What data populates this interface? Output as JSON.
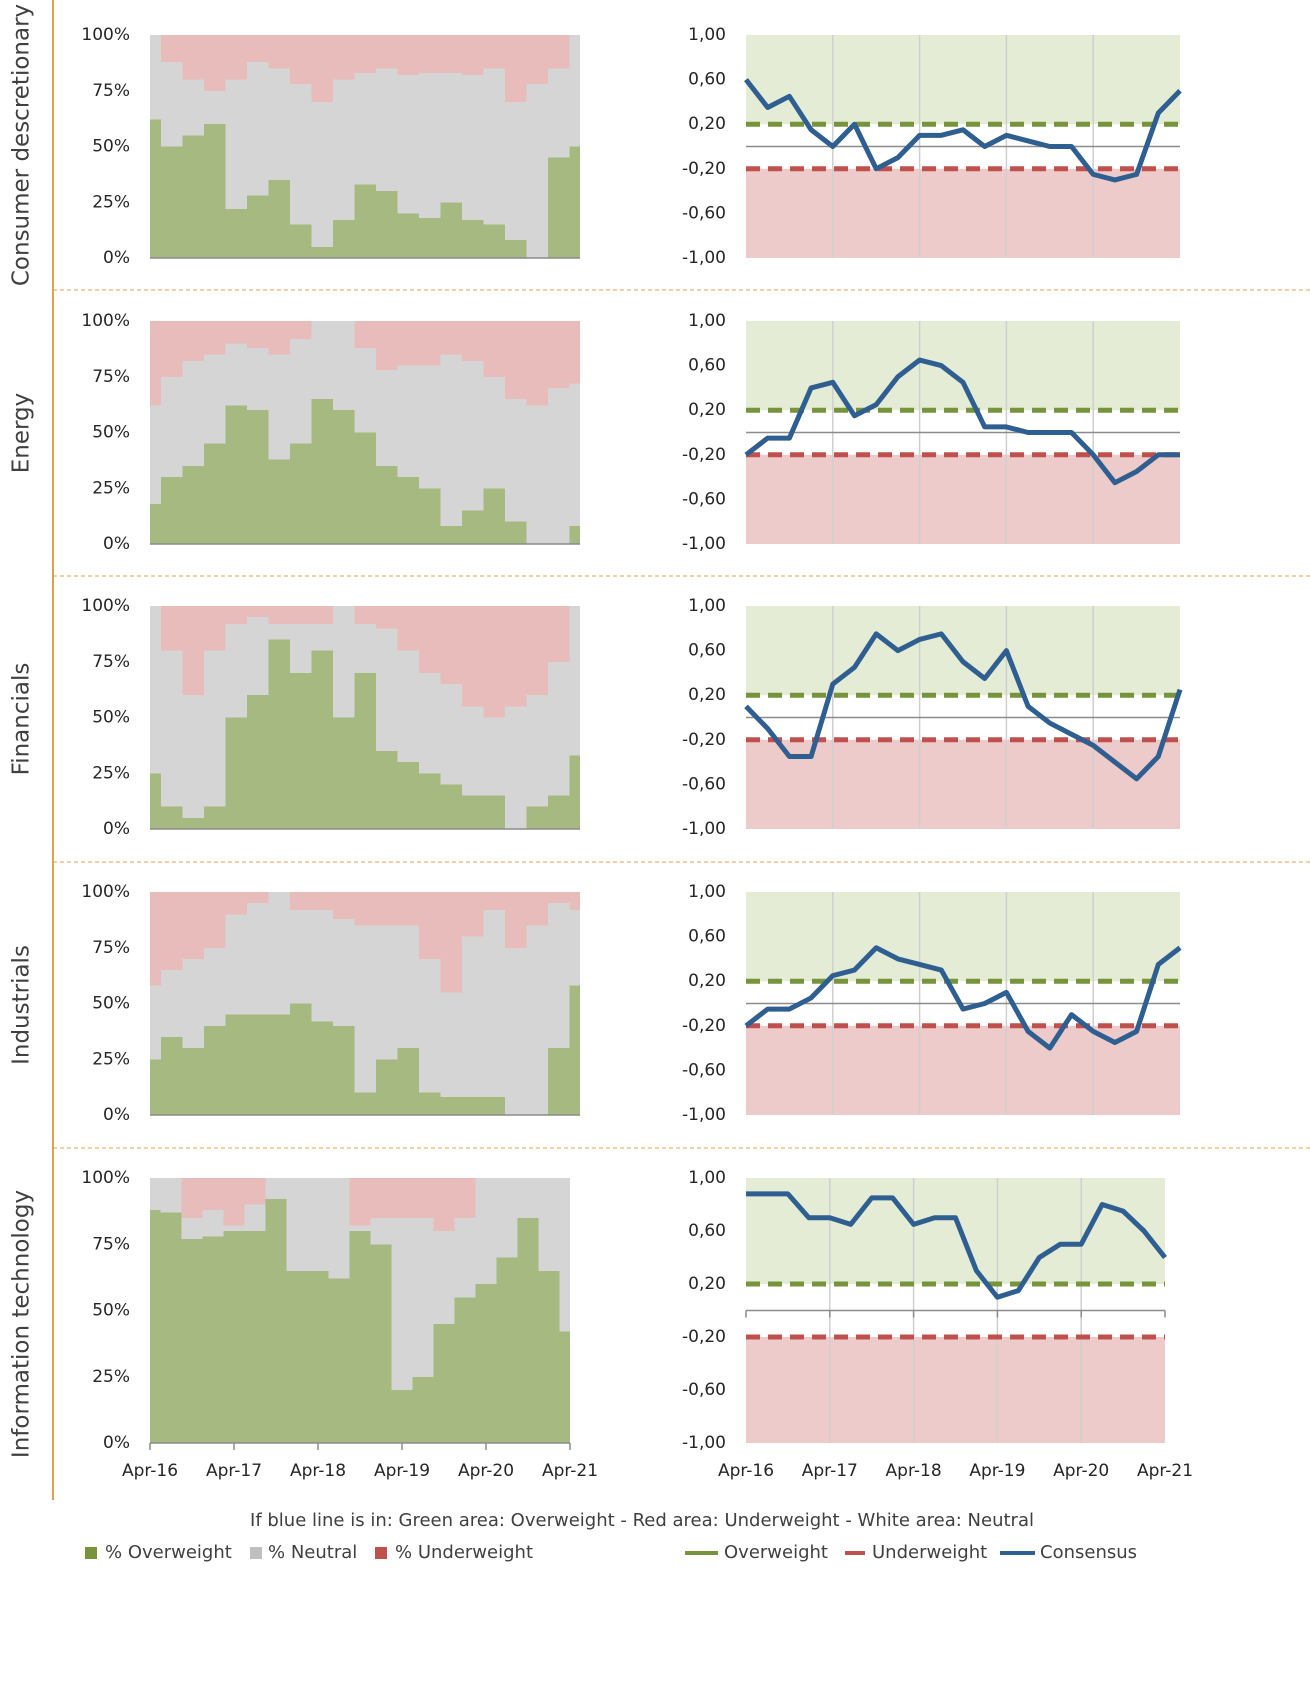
{
  "chart_data": [
    {
      "type": "stacked_area",
      "ylabel": "Consumer descretionary",
      "ylim": [
        0,
        100
      ],
      "yticks": [
        {
          "value": 0,
          "label": "0%"
        },
        {
          "value": 25,
          "label": "25%"
        },
        {
          "value": 50,
          "label": "50%"
        },
        {
          "value": 75,
          "label": "75%"
        },
        {
          "value": 100,
          "label": "100%"
        }
      ],
      "series": [
        {
          "name": "% Overweight",
          "color": "#77933c",
          "values": [
            62,
            50,
            55,
            60,
            22,
            28,
            35,
            15,
            5,
            17,
            33,
            30,
            20,
            18,
            25,
            17,
            15,
            8,
            0,
            45,
            50
          ]
        },
        {
          "name": "% Neutral",
          "color": "#bfbfbf",
          "values": [
            38,
            38,
            25,
            15,
            58,
            60,
            50,
            63,
            65,
            63,
            50,
            55,
            62,
            65,
            58,
            65,
            70,
            62,
            78,
            40,
            50
          ]
        },
        {
          "name": "% Underweight",
          "color": "#c0504d",
          "values": [
            0,
            12,
            20,
            25,
            20,
            12,
            15,
            22,
            30,
            20,
            17,
            15,
            18,
            17,
            17,
            18,
            15,
            30,
            22,
            15,
            0
          ]
        }
      ]
    },
    {
      "type": "line",
      "ylim": [
        -1,
        1
      ],
      "yticks": [
        {
          "value": -1,
          "label": "-1,00"
        },
        {
          "value": -0.6,
          "label": "-0,60"
        },
        {
          "value": -0.2,
          "label": "-0,20"
        },
        {
          "value": 0.2,
          "label": "0,20"
        },
        {
          "value": 0.6,
          "label": "0,60"
        },
        {
          "value": 1,
          "label": "1,00"
        }
      ],
      "reference_lines": [
        {
          "name": "Overweight",
          "value": 0.2,
          "color": "#77933c",
          "fill": "#e4ecd6"
        },
        {
          "name": "Underweight",
          "value": -0.2,
          "color": "#c0504d",
          "fill": "#eecbcb"
        }
      ],
      "series": [
        {
          "name": "Consensus",
          "color": "#2f5f91",
          "values": [
            0.6,
            0.35,
            0.45,
            0.15,
            0,
            0.2,
            -0.2,
            -0.1,
            0.1,
            0.1,
            0.15,
            0,
            0.1,
            0.05,
            0,
            0,
            -0.25,
            -0.3,
            -0.25,
            0.3,
            0.5
          ]
        }
      ]
    },
    {
      "type": "stacked_area",
      "ylabel": "Energy",
      "ylim": [
        0,
        100
      ],
      "yticks": [
        {
          "value": 0,
          "label": "0%"
        },
        {
          "value": 25,
          "label": "25%"
        },
        {
          "value": 50,
          "label": "50%"
        },
        {
          "value": 75,
          "label": "75%"
        },
        {
          "value": 100,
          "label": "100%"
        }
      ],
      "series": [
        {
          "name": "% Overweight",
          "color": "#77933c",
          "values": [
            18,
            30,
            35,
            45,
            62,
            60,
            38,
            45,
            65,
            60,
            50,
            35,
            30,
            25,
            8,
            15,
            25,
            10,
            0,
            0,
            8
          ]
        },
        {
          "name": "% Neutral",
          "color": "#bfbfbf",
          "values": [
            44,
            45,
            47,
            40,
            28,
            28,
            47,
            47,
            35,
            40,
            38,
            43,
            50,
            55,
            77,
            67,
            50,
            55,
            62,
            70,
            64
          ]
        },
        {
          "name": "% Underweight",
          "color": "#c0504d",
          "values": [
            38,
            25,
            18,
            15,
            10,
            12,
            15,
            8,
            0,
            0,
            12,
            22,
            20,
            20,
            15,
            18,
            25,
            35,
            38,
            30,
            28
          ]
        }
      ]
    },
    {
      "type": "line",
      "ylim": [
        -1,
        1
      ],
      "yticks": [
        {
          "value": -1,
          "label": "-1,00"
        },
        {
          "value": -0.6,
          "label": "-0,60"
        },
        {
          "value": -0.2,
          "label": "-0,20"
        },
        {
          "value": 0.2,
          "label": "0,20"
        },
        {
          "value": 0.6,
          "label": "0,60"
        },
        {
          "value": 1,
          "label": "1,00"
        }
      ],
      "reference_lines": [
        {
          "name": "Overweight",
          "value": 0.2,
          "color": "#77933c",
          "fill": "#e4ecd6"
        },
        {
          "name": "Underweight",
          "value": -0.2,
          "color": "#c0504d",
          "fill": "#eecbcb"
        }
      ],
      "series": [
        {
          "name": "Consensus",
          "color": "#2f5f91",
          "values": [
            -0.2,
            -0.05,
            -0.05,
            0.4,
            0.45,
            0.15,
            0.25,
            0.5,
            0.65,
            0.6,
            0.45,
            0.05,
            0.05,
            0,
            0,
            0,
            -0.2,
            -0.45,
            -0.35,
            -0.2,
            -0.2
          ]
        }
      ]
    },
    {
      "type": "stacked_area",
      "ylabel": "Financials",
      "ylim": [
        0,
        100
      ],
      "yticks": [
        {
          "value": 0,
          "label": "0%"
        },
        {
          "value": 25,
          "label": "25%"
        },
        {
          "value": 50,
          "label": "50%"
        },
        {
          "value": 75,
          "label": "75%"
        },
        {
          "value": 100,
          "label": "100%"
        }
      ],
      "series": [
        {
          "name": "% Overweight",
          "color": "#77933c",
          "values": [
            25,
            10,
            5,
            10,
            50,
            60,
            85,
            70,
            80,
            50,
            70,
            35,
            30,
            25,
            20,
            15,
            15,
            0,
            10,
            15,
            33
          ]
        },
        {
          "name": "% Neutral",
          "color": "#bfbfbf",
          "values": [
            75,
            70,
            55,
            70,
            42,
            35,
            7,
            22,
            12,
            50,
            22,
            55,
            50,
            45,
            45,
            40,
            35,
            55,
            50,
            60,
            67
          ]
        },
        {
          "name": "% Underweight",
          "color": "#c0504d",
          "values": [
            0,
            20,
            40,
            20,
            8,
            5,
            8,
            8,
            8,
            0,
            8,
            10,
            20,
            30,
            35,
            45,
            50,
            45,
            40,
            25,
            0
          ]
        }
      ]
    },
    {
      "type": "line",
      "ylim": [
        -1,
        1
      ],
      "yticks": [
        {
          "value": -1,
          "label": "-1,00"
        },
        {
          "value": -0.6,
          "label": "-0,60"
        },
        {
          "value": -0.2,
          "label": "-0,20"
        },
        {
          "value": 0.2,
          "label": "0,20"
        },
        {
          "value": 0.6,
          "label": "0,60"
        },
        {
          "value": 1,
          "label": "1,00"
        }
      ],
      "reference_lines": [
        {
          "name": "Overweight",
          "value": 0.2,
          "color": "#77933c",
          "fill": "#e4ecd6"
        },
        {
          "name": "Underweight",
          "value": -0.2,
          "color": "#c0504d",
          "fill": "#eecbcb"
        }
      ],
      "series": [
        {
          "name": "Consensus",
          "color": "#2f5f91",
          "values": [
            0.1,
            -0.1,
            -0.35,
            -0.35,
            0.3,
            0.45,
            0.75,
            0.6,
            0.7,
            0.75,
            0.5,
            0.35,
            0.6,
            0.1,
            -0.05,
            -0.15,
            -0.25,
            -0.4,
            -0.55,
            -0.35,
            0.25
          ]
        }
      ]
    },
    {
      "type": "stacked_area",
      "ylabel": "Industrials",
      "ylim": [
        0,
        100
      ],
      "yticks": [
        {
          "value": 0,
          "label": "0%"
        },
        {
          "value": 25,
          "label": "25%"
        },
        {
          "value": 50,
          "label": "50%"
        },
        {
          "value": 75,
          "label": "75%"
        },
        {
          "value": 100,
          "label": "100%"
        }
      ],
      "series": [
        {
          "name": "% Overweight",
          "color": "#77933c",
          "values": [
            25,
            35,
            30,
            40,
            45,
            45,
            45,
            50,
            42,
            40,
            10,
            25,
            30,
            10,
            8,
            8,
            8,
            0,
            0,
            30,
            58
          ]
        },
        {
          "name": "% Neutral",
          "color": "#bfbfbf",
          "values": [
            33,
            30,
            40,
            35,
            45,
            50,
            55,
            42,
            50,
            48,
            75,
            60,
            55,
            60,
            47,
            72,
            84,
            75,
            85,
            65,
            34
          ]
        },
        {
          "name": "% Underweight",
          "color": "#c0504d",
          "values": [
            42,
            35,
            30,
            25,
            10,
            5,
            0,
            8,
            8,
            12,
            15,
            15,
            15,
            30,
            45,
            20,
            8,
            25,
            15,
            5,
            8
          ]
        }
      ]
    },
    {
      "type": "line",
      "ylim": [
        -1,
        1
      ],
      "yticks": [
        {
          "value": -1,
          "label": "-1,00"
        },
        {
          "value": -0.6,
          "label": "-0,60"
        },
        {
          "value": -0.2,
          "label": "-0,20"
        },
        {
          "value": 0.2,
          "label": "0,20"
        },
        {
          "value": 0.6,
          "label": "0,60"
        },
        {
          "value": 1,
          "label": "1,00"
        }
      ],
      "reference_lines": [
        {
          "name": "Overweight",
          "value": 0.2,
          "color": "#77933c",
          "fill": "#e4ecd6"
        },
        {
          "name": "Underweight",
          "value": -0.2,
          "color": "#c0504d",
          "fill": "#eecbcb"
        }
      ],
      "series": [
        {
          "name": "Consensus",
          "color": "#2f5f91",
          "values": [
            -0.2,
            -0.05,
            -0.05,
            0.05,
            0.25,
            0.3,
            0.5,
            0.4,
            0.35,
            0.3,
            -0.05,
            0,
            0.1,
            -0.25,
            -0.4,
            -0.1,
            -0.25,
            -0.35,
            -0.25,
            0.35,
            0.5
          ]
        }
      ]
    },
    {
      "type": "stacked_area",
      "ylabel": "Information technology",
      "ylim": [
        0,
        100
      ],
      "yticks": [
        {
          "value": 0,
          "label": "0%"
        },
        {
          "value": 25,
          "label": "25%"
        },
        {
          "value": 50,
          "label": "50%"
        },
        {
          "value": 75,
          "label": "75%"
        },
        {
          "value": 100,
          "label": "100%"
        }
      ],
      "categories": [
        "Apr-16",
        null,
        null,
        null,
        "Apr-17",
        null,
        null,
        null,
        "Apr-18",
        null,
        null,
        null,
        "Apr-19",
        null,
        null,
        null,
        "Apr-20",
        null,
        null,
        null,
        "Apr-21"
      ],
      "series": [
        {
          "name": "% Overweight",
          "color": "#77933c",
          "values": [
            88,
            87,
            77,
            78,
            80,
            80,
            92,
            65,
            65,
            62,
            80,
            75,
            20,
            25,
            45,
            55,
            60,
            70,
            85,
            65,
            42
          ]
        },
        {
          "name": "% Neutral",
          "color": "#bfbfbf",
          "values": [
            12,
            13,
            8,
            10,
            2,
            10,
            8,
            35,
            35,
            38,
            2,
            10,
            65,
            60,
            35,
            30,
            40,
            30,
            15,
            35,
            58
          ]
        },
        {
          "name": "% Underweight",
          "color": "#c0504d",
          "values": [
            0,
            0,
            15,
            12,
            18,
            10,
            0,
            0,
            0,
            0,
            18,
            15,
            15,
            15,
            20,
            15,
            0,
            0,
            0,
            0,
            0
          ]
        }
      ]
    },
    {
      "type": "line",
      "ylim": [
        -1,
        1
      ],
      "yticks": [
        {
          "value": -1,
          "label": "-1,00"
        },
        {
          "value": -0.6,
          "label": "-0,60"
        },
        {
          "value": -0.2,
          "label": "-0,20"
        },
        {
          "value": 0.2,
          "label": "0,20"
        },
        {
          "value": 0.6,
          "label": "0,60"
        },
        {
          "value": 1,
          "label": "1,00"
        }
      ],
      "categories": [
        "Apr-16",
        null,
        null,
        null,
        "Apr-17",
        null,
        null,
        null,
        "Apr-18",
        null,
        null,
        null,
        "Apr-19",
        null,
        null,
        null,
        "Apr-20",
        null,
        null,
        null,
        "Apr-21"
      ],
      "reference_lines": [
        {
          "name": "Overweight",
          "value": 0.2,
          "color": "#77933c",
          "fill": "#e4ecd6"
        },
        {
          "name": "Underweight",
          "value": -0.2,
          "color": "#c0504d",
          "fill": "#eecbcb"
        }
      ],
      "series": [
        {
          "name": "Consensus",
          "color": "#2f5f91",
          "values": [
            0.88,
            0.88,
            0.88,
            0.7,
            0.7,
            0.65,
            0.85,
            0.85,
            0.65,
            0.7,
            0.7,
            0.3,
            0.1,
            0.15,
            0.4,
            0.5,
            0.5,
            0.8,
            0.75,
            0.6,
            0.4
          ]
        }
      ]
    }
  ],
  "footnote": "If blue line is in: Green area: Overweight - Red area: Underweight - White area: Neutral"
}
